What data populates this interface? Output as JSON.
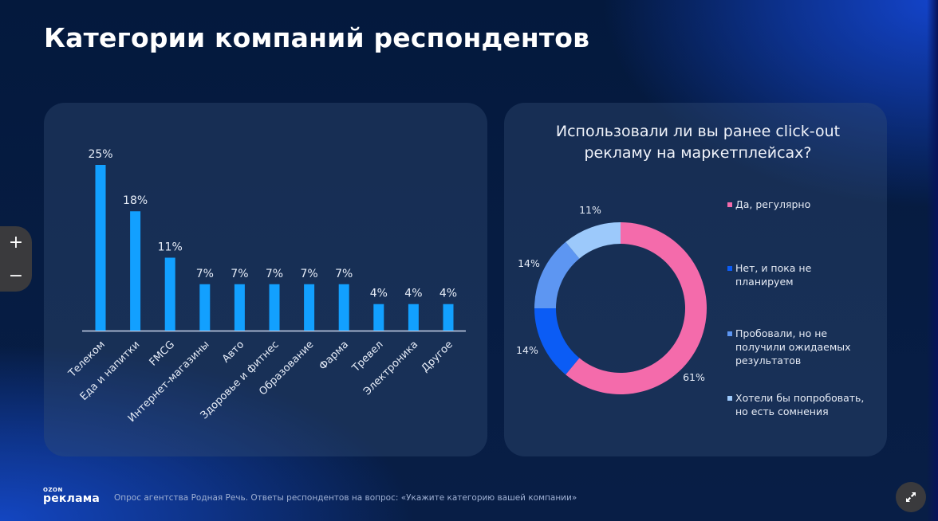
{
  "page": {
    "title": "Категории компаний респондентов",
    "footer_logo_small": "OZON",
    "footer_logo_big": "реклама",
    "footer_note": "Опрос агентства Родная Речь. Ответы респондентов на вопрос: «Укажите категорию вашей компании»",
    "zoom_in_label": "+",
    "zoom_out_label": "−",
    "expand_icon": "expand-arrows-icon"
  },
  "chart_data": [
    {
      "type": "bar",
      "title": "",
      "xlabel": "",
      "ylabel": "",
      "ylim": [
        0,
        25
      ],
      "grid": false,
      "bar_color": "#12a0ff",
      "categories": [
        "Телеком",
        "Еда и напитки",
        "FMCG",
        "Интернет-магазины",
        "Авто",
        "Здоровье и фитнес",
        "Образование",
        "Фарма",
        "Тревел",
        "Электроника",
        "Другое"
      ],
      "values": [
        25,
        18,
        11,
        7,
        7,
        7,
        7,
        7,
        4,
        4,
        4
      ],
      "data_labels": [
        "25%",
        "18%",
        "11%",
        "7%",
        "7%",
        "7%",
        "7%",
        "7%",
        "4%",
        "4%",
        "4%"
      ]
    },
    {
      "type": "pie",
      "variant": "donut",
      "title": "Использовали ли вы ранее click-out рекламу на маркетплейсах?",
      "legend_position": "right",
      "slices": [
        {
          "label": "Да, регулярно",
          "value": 61,
          "display": "61%",
          "color": "#f46bab"
        },
        {
          "label": "Нет, и пока не планируем",
          "value": 14,
          "display": "14%",
          "color": "#0b5cf5"
        },
        {
          "label": "Пробовали, но не получили ожидаемых результатов",
          "value": 14,
          "display": "14%",
          "color": "#5d96f2"
        },
        {
          "label": "Хотели бы попробовать, но есть сомнения",
          "value": 11,
          "display": "11%",
          "color": "#9cc9fb"
        }
      ]
    }
  ]
}
